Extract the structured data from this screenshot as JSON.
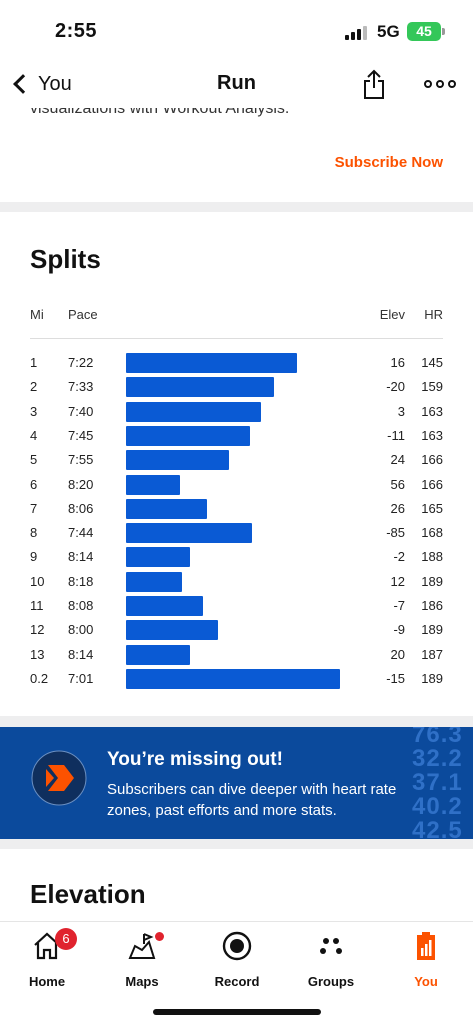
{
  "status": {
    "time": "2:55",
    "network": "5G",
    "battery": "45"
  },
  "nav": {
    "back_label": "You",
    "title": "Run"
  },
  "promo_top": {
    "cut_text": "visualizations with Workout Analysis.",
    "subscribe_label": "Subscribe Now"
  },
  "splits": {
    "title": "Splits",
    "headers": {
      "mi": "Mi",
      "pace": "Pace",
      "elev": "Elev",
      "hr": "HR"
    },
    "rows": [
      {
        "mi": "1",
        "pace": "7:22",
        "elev": "16",
        "hr": "145",
        "speed": 0.8
      },
      {
        "mi": "2",
        "pace": "7:33",
        "elev": "-20",
        "hr": "159",
        "speed": 0.69
      },
      {
        "mi": "3",
        "pace": "7:40",
        "elev": "3",
        "hr": "163",
        "speed": 0.63
      },
      {
        "mi": "4",
        "pace": "7:45",
        "elev": "-11",
        "hr": "163",
        "speed": 0.58
      },
      {
        "mi": "5",
        "pace": "7:55",
        "elev": "24",
        "hr": "166",
        "speed": 0.48
      },
      {
        "mi": "6",
        "pace": "8:20",
        "elev": "56",
        "hr": "166",
        "speed": 0.25
      },
      {
        "mi": "7",
        "pace": "8:06",
        "elev": "26",
        "hr": "165",
        "speed": 0.38
      },
      {
        "mi": "8",
        "pace": "7:44",
        "elev": "-85",
        "hr": "168",
        "speed": 0.59
      },
      {
        "mi": "9",
        "pace": "8:14",
        "elev": "-2",
        "hr": "188",
        "speed": 0.3
      },
      {
        "mi": "10",
        "pace": "8:18",
        "elev": "12",
        "hr": "189",
        "speed": 0.26
      },
      {
        "mi": "11",
        "pace": "8:08",
        "elev": "-7",
        "hr": "186",
        "speed": 0.36
      },
      {
        "mi": "12",
        "pace": "8:00",
        "elev": "-9",
        "hr": "189",
        "speed": 0.43
      },
      {
        "mi": "13",
        "pace": "8:14",
        "elev": "20",
        "hr": "187",
        "speed": 0.3
      },
      {
        "mi": "0.2",
        "pace": "7:01",
        "elev": "-15",
        "hr": "189",
        "speed": 1.0
      }
    ]
  },
  "upsell": {
    "title": "You’re missing out!",
    "body": "Subscribers can dive deeper with heart rate zones, past efforts and more stats.",
    "deco_lines": [
      "76.3",
      "32.2",
      "37.1",
      "40.2",
      "42.5"
    ]
  },
  "elevation": {
    "title": "Elevation"
  },
  "tabs": [
    {
      "label": "Home",
      "badge": "6",
      "icon": "home-icon"
    },
    {
      "label": "Maps",
      "icon": "maps-icon"
    },
    {
      "label": "Record",
      "icon": "record-icon"
    },
    {
      "label": "Groups",
      "icon": "groups-icon"
    },
    {
      "label": "You",
      "icon": "you-icon"
    }
  ],
  "colors": {
    "accent": "#fc5200",
    "bar": "#0a5ad4",
    "upsell_bg": "#0b4a9c",
    "badge": "#e0232e"
  }
}
